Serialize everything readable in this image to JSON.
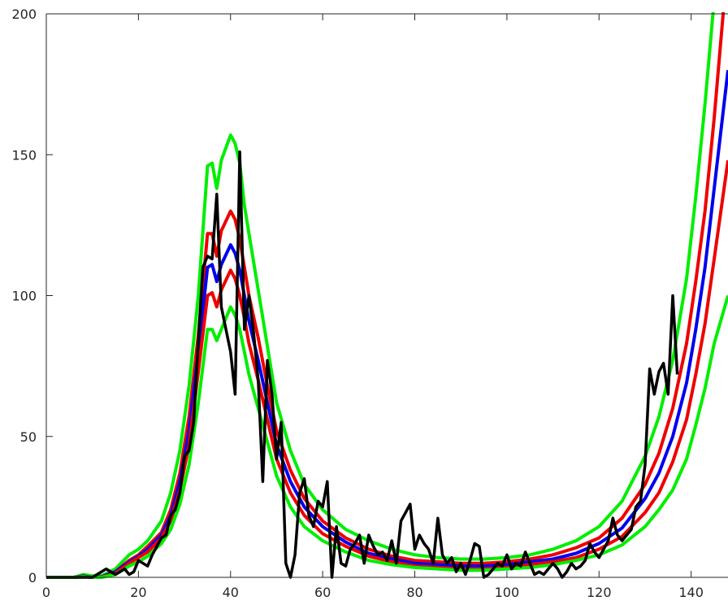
{
  "chart_data": {
    "type": "line",
    "title": "",
    "xlabel": "",
    "ylabel": "",
    "xlim": [
      0,
      148
    ],
    "ylim": [
      0,
      200
    ],
    "grid": false,
    "legend": "none",
    "x_ticks": [
      0,
      20,
      40,
      60,
      80,
      100,
      120,
      140
    ],
    "y_ticks": [
      0,
      50,
      100,
      150,
      200
    ],
    "x_tick_labels": [
      "0",
      "20",
      "40",
      "60",
      "80",
      "100",
      "120",
      "140"
    ],
    "y_tick_labels": [
      "0",
      "50",
      "100",
      "150",
      "200"
    ],
    "series": [
      {
        "color": "#00ee00",
        "role": "upper band",
        "x": [
          0,
          6,
          8,
          10,
          12,
          15,
          18,
          20,
          22,
          25,
          27,
          29,
          31,
          33,
          35,
          36,
          37,
          38,
          40,
          41,
          42,
          43,
          44,
          46,
          48,
          50,
          53,
          56,
          60,
          65,
          70,
          75,
          80,
          85,
          90,
          95,
          100,
          105,
          110,
          115,
          120,
          125,
          130,
          133,
          136,
          139,
          141,
          143,
          145,
          146
        ],
        "y": [
          0,
          0,
          1,
          0.5,
          0.5,
          3,
          8,
          10,
          13,
          20,
          30,
          45,
          68,
          100,
          146,
          147,
          138,
          148,
          157,
          154,
          147,
          132,
          122,
          102,
          82,
          62,
          45,
          33,
          24,
          17,
          13,
          10,
          8,
          7,
          6.5,
          6.5,
          7,
          8,
          10,
          13,
          18,
          27,
          43,
          57,
          77,
          106,
          135,
          168,
          205,
          230
        ]
      },
      {
        "color": "#ee0000",
        "role": "upper inner band",
        "x": [
          0,
          6,
          8,
          10,
          12,
          15,
          18,
          20,
          22,
          25,
          27,
          29,
          31,
          33,
          35,
          36,
          37,
          38,
          40,
          41,
          42,
          43,
          44,
          46,
          48,
          50,
          53,
          56,
          60,
          65,
          70,
          75,
          80,
          85,
          90,
          95,
          100,
          105,
          110,
          115,
          120,
          125,
          130,
          133,
          136,
          139,
          141,
          143,
          145,
          148
        ],
        "y": [
          0,
          0,
          0.5,
          0,
          0.2,
          2,
          6,
          8,
          11,
          16,
          24,
          37,
          57,
          86,
          122,
          122,
          114,
          123,
          130,
          127,
          120,
          110,
          100,
          85,
          68,
          52,
          38,
          28,
          20,
          14,
          10,
          7.5,
          6,
          5.5,
          5,
          5,
          5.5,
          6.5,
          8,
          10.5,
          14,
          21,
          33,
          44,
          60,
          83,
          105,
          130,
          163,
          220
        ]
      },
      {
        "color": "#0000ee",
        "role": "central estimate",
        "x": [
          0,
          6,
          8,
          10,
          12,
          15,
          18,
          20,
          22,
          25,
          27,
          29,
          31,
          33,
          35,
          36,
          37,
          38,
          40,
          41,
          42,
          43,
          44,
          46,
          48,
          50,
          53,
          56,
          60,
          65,
          70,
          75,
          80,
          85,
          90,
          95,
          100,
          105,
          110,
          115,
          120,
          125,
          130,
          133,
          136,
          139,
          141,
          143,
          145,
          148
        ],
        "y": [
          0,
          0,
          0.5,
          0,
          0.2,
          2,
          5.5,
          7.5,
          10,
          15,
          22,
          34,
          52,
          80,
          110,
          111,
          105,
          111,
          118,
          115,
          109,
          100,
          91,
          77,
          62,
          47,
          34,
          25,
          18,
          12.5,
          8.5,
          6.5,
          5,
          4.5,
          4,
          4,
          4.5,
          5.5,
          6.5,
          8.5,
          12,
          17.5,
          28,
          37,
          50,
          69,
          88,
          110,
          138,
          180
        ]
      },
      {
        "color": "#ee0000",
        "role": "lower inner band",
        "x": [
          0,
          6,
          8,
          10,
          12,
          15,
          18,
          20,
          22,
          25,
          27,
          29,
          31,
          33,
          35,
          36,
          37,
          38,
          40,
          41,
          42,
          43,
          44,
          46,
          48,
          50,
          53,
          56,
          60,
          65,
          70,
          75,
          80,
          85,
          90,
          95,
          100,
          105,
          110,
          115,
          120,
          125,
          130,
          133,
          136,
          139,
          141,
          143,
          145,
          148
        ],
        "y": [
          0,
          0,
          0.3,
          0,
          0.1,
          1.5,
          5,
          7,
          9,
          14,
          20,
          31,
          47,
          73,
          100,
          101,
          96,
          102,
          109,
          106,
          100,
          92,
          83,
          70,
          56,
          42,
          30,
          22,
          15.5,
          11,
          7.5,
          5.5,
          4,
          3.5,
          3,
          3,
          3.5,
          4.5,
          5.5,
          7,
          10,
          14.5,
          23,
          30,
          41,
          56,
          72,
          90,
          113,
          148
        ]
      },
      {
        "color": "#00ee00",
        "role": "lower band",
        "x": [
          0,
          6,
          8,
          10,
          12,
          15,
          18,
          20,
          22,
          25,
          27,
          29,
          31,
          33,
          35,
          36,
          37,
          38,
          40,
          41,
          42,
          43,
          44,
          46,
          48,
          50,
          53,
          56,
          60,
          65,
          70,
          75,
          80,
          85,
          90,
          95,
          100,
          105,
          110,
          115,
          120,
          125,
          130,
          133,
          136,
          139,
          141,
          143,
          145,
          148
        ],
        "y": [
          0,
          0,
          0.2,
          0,
          0,
          1,
          4,
          5.5,
          7.5,
          12,
          17,
          26,
          40,
          62,
          88,
          88,
          84,
          88,
          96,
          93,
          88,
          80,
          72,
          60,
          48,
          36,
          25,
          18,
          13,
          9,
          6,
          4.5,
          3.5,
          3,
          2.5,
          2.5,
          3,
          3.5,
          4.5,
          6,
          8,
          11.5,
          18,
          24,
          31,
          42,
          54,
          67,
          83,
          100
        ]
      },
      {
        "color": "#000000",
        "role": "observed",
        "x": [
          0,
          5,
          8,
          10,
          11,
          12,
          13,
          14,
          15,
          16,
          17,
          18,
          19,
          20,
          21,
          22,
          23,
          24,
          25,
          26,
          27,
          28,
          29,
          30,
          31,
          32,
          33,
          34,
          35,
          36,
          37,
          38,
          39,
          40,
          41,
          42,
          43,
          44,
          45,
          46,
          47,
          48,
          49,
          50,
          51,
          52,
          53,
          54,
          55,
          56,
          57,
          58,
          59,
          60,
          61,
          62,
          63,
          64,
          65,
          66,
          67,
          68,
          69,
          70,
          71,
          72,
          73,
          74,
          75,
          76,
          77,
          78,
          79,
          80,
          81,
          82,
          83,
          84,
          85,
          86,
          87,
          88,
          89,
          90,
          91,
          92,
          93,
          94,
          95,
          96,
          97,
          98,
          99,
          100,
          101,
          102,
          103,
          104,
          105,
          106,
          107,
          108,
          109,
          110,
          111,
          112,
          113,
          114,
          115,
          116,
          117,
          118,
          119,
          120,
          121,
          122,
          123,
          124,
          125,
          126,
          127,
          128,
          129,
          130,
          131,
          132,
          133,
          134,
          135,
          136,
          137
        ],
        "y": [
          0,
          0,
          0,
          0,
          1,
          2,
          3,
          2,
          1,
          2,
          3,
          1,
          2,
          6,
          5,
          4,
          8,
          11,
          14,
          15,
          22,
          24,
          30,
          43,
          45,
          55,
          84,
          110,
          114,
          113,
          136,
          96,
          88,
          80,
          65,
          151,
          88,
          100,
          87,
          70,
          34,
          77,
          65,
          42,
          55,
          5,
          0,
          8,
          30,
          35,
          22,
          18,
          27,
          25,
          34,
          0,
          18,
          5,
          4,
          10,
          12,
          15,
          5,
          15,
          11,
          8,
          9,
          6,
          13,
          5,
          20,
          23,
          26,
          10,
          15,
          12,
          10,
          5,
          21,
          8,
          5,
          7,
          2,
          5,
          1,
          6,
          12,
          11,
          0,
          1,
          3,
          5,
          4,
          8,
          3,
          5,
          4,
          9,
          5,
          1,
          2,
          1,
          3,
          5,
          3,
          0,
          2,
          5,
          3,
          4,
          6,
          12,
          9,
          7,
          10,
          13,
          21,
          15,
          13,
          15,
          17,
          25,
          27,
          40,
          74,
          65,
          73,
          76,
          65,
          100,
          72
        ]
      }
    ]
  }
}
